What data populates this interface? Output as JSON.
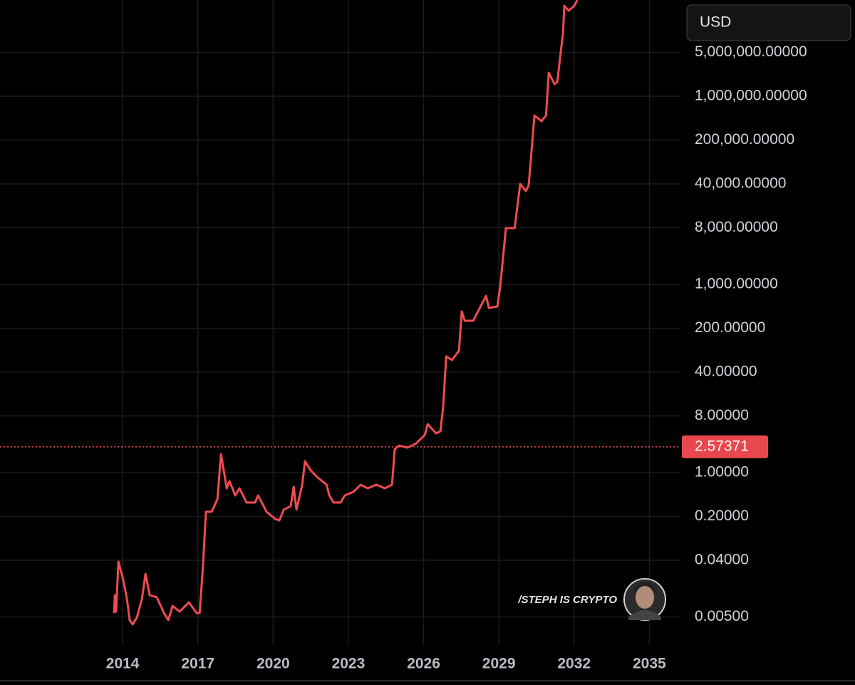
{
  "currency_button": "USD",
  "watermark": "/STEPH IS CRYPTO",
  "chart_data": {
    "type": "line",
    "log_scale": true,
    "grid": true,
    "color": "#ef4b50",
    "last_price": 2.57371,
    "xlim": [
      2009.11,
      2036.24
    ],
    "ylim": [
      0.00178,
      34200000
    ],
    "xticks": [
      2014,
      2017,
      2020,
      2023,
      2026,
      2029,
      2032,
      2035
    ],
    "yticks": [
      {
        "value": 0.005,
        "label": "0.00500"
      },
      {
        "value": 0.04,
        "label": "0.04000"
      },
      {
        "value": 0.2,
        "label": "0.20000"
      },
      {
        "value": 1,
        "label": "1.00000"
      },
      {
        "value": 8,
        "label": "8.00000"
      },
      {
        "value": 40,
        "label": "40.00000"
      },
      {
        "value": 200,
        "label": "200.00000"
      },
      {
        "value": 1000,
        "label": "1,000.00000"
      },
      {
        "value": 8000,
        "label": "8,000.00000"
      },
      {
        "value": 40000,
        "label": "40,000.00000"
      },
      {
        "value": 200000,
        "label": "200,000.00000"
      },
      {
        "value": 1000000,
        "label": "1,000,000.00000"
      },
      {
        "value": 5000000,
        "label": "5,000,000.00000"
      }
    ],
    "x": [
      2013.66,
      2013.69,
      2013.74,
      2013.83,
      2014.0,
      2014.17,
      2014.28,
      2014.4,
      2014.57,
      2014.77,
      2014.91,
      2015.08,
      2015.36,
      2015.65,
      2015.82,
      2015.99,
      2016.27,
      2016.64,
      2016.95,
      2017.07,
      2017.21,
      2017.32,
      2017.55,
      2017.78,
      2017.92,
      2018.15,
      2018.26,
      2018.49,
      2018.66,
      2018.94,
      2019.28,
      2019.4,
      2019.74,
      2020.08,
      2020.25,
      2020.42,
      2020.7,
      2020.82,
      2020.93,
      2021.16,
      2021.27,
      2021.5,
      2021.78,
      2022.13,
      2022.24,
      2022.41,
      2022.69,
      2022.86,
      2023.2,
      2023.49,
      2023.77,
      2024.11,
      2024.45,
      2024.74,
      2024.85,
      2025.02,
      2025.36,
      2025.7,
      2026.05,
      2026.16,
      2026.5,
      2026.67,
      2026.78,
      2026.9,
      2027.13,
      2027.41,
      2027.52,
      2027.64,
      2027.98,
      2028.15,
      2028.49,
      2028.6,
      2028.94,
      2029.06,
      2029.28,
      2029.63,
      2029.85,
      2030.08,
      2030.19,
      2030.42,
      2030.7,
      2030.88,
      2030.99,
      2031.22,
      2031.33,
      2031.56,
      2031.61,
      2031.78,
      2032.01,
      2032.13
    ],
    "values": [
      0.00577,
      0.0111,
      0.00608,
      0.038,
      0.0214,
      0.00975,
      0.00445,
      0.0038,
      0.00493,
      0.00975,
      0.0243,
      0.0111,
      0.0103,
      0.00577,
      0.00445,
      0.0075,
      0.00608,
      0.00855,
      0.00577,
      0.00577,
      0.036,
      0.237,
      0.237,
      0.38,
      1.97,
      0.562,
      0.731,
      0.433,
      0.562,
      0.333,
      0.333,
      0.433,
      0.237,
      0.183,
      0.173,
      0.256,
      0.292,
      0.593,
      0.256,
      0.641,
      1.52,
      1.08,
      0.832,
      0.641,
      0.433,
      0.333,
      0.333,
      0.433,
      0.493,
      0.641,
      0.562,
      0.641,
      0.562,
      0.641,
      2.37,
      2.7,
      2.5,
      2.92,
      4.0,
      5.93,
      4.22,
      4.56,
      11.4,
      71.1,
      62.4,
      87.7,
      370,
      263,
      263,
      360,
      658,
      422,
      444,
      975,
      7900,
      7900,
      40000,
      30800,
      38000,
      493000,
      400000,
      493000,
      2370000,
      1560000,
      1690000,
      10500000,
      27700000,
      23100000,
      27700000,
      34200000
    ]
  }
}
